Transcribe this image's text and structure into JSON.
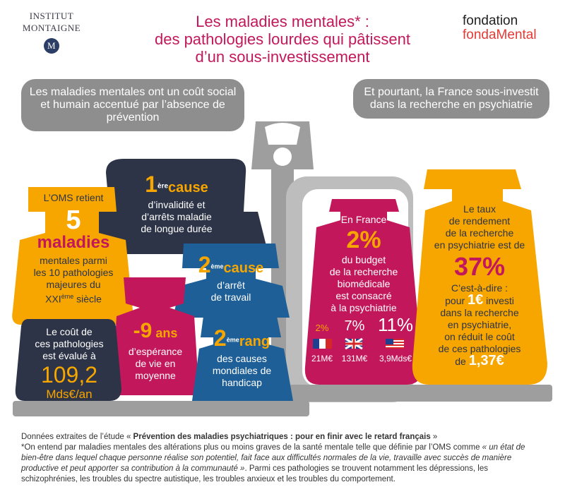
{
  "header": {
    "logo_left_line1": "INSTITUT",
    "logo_left_line2": "MONTAIGNE",
    "logo_left_mark": "M",
    "title_line1": "Les maladies mentales* :",
    "title_line2": "des pathologies lourdes qui pâtissent",
    "title_line3": "d’un sous-investissement",
    "logo_right_line1": "fondation",
    "logo_right_line2": "fondaMental"
  },
  "left_heading": "Les maladies mentales ont un coût social et humain accentué par l’absence de prévention",
  "right_heading": "Et pourtant, la France sous-investit dans la recherche en psychiatrie",
  "weights": {
    "oms": {
      "intro": "L’OMS retient",
      "number": "5",
      "unit": "maladies",
      "line1": "mentales parmi",
      "line2": "les 10 pathologies",
      "line3": "majeures du",
      "line4a": "XXI",
      "line4sup": "ème",
      "line4b": " siècle"
    },
    "first_cause": {
      "num": "1",
      "sup": "ère",
      "label": "cause",
      "line1": "d’invalidité et",
      "line2": "d’arrêts maladie",
      "line3": "de longue durée"
    },
    "second_cause": {
      "num": "2",
      "sup": "ème",
      "label": "cause",
      "line1": "d’arrêt",
      "line2": "de travail"
    },
    "cost": {
      "line1": "Le coût de",
      "line2": "ces pathologies",
      "line3": "est évalué à",
      "value": "109,2",
      "unit": "Mds€/an"
    },
    "life": {
      "value": "-9",
      "unit": " ans",
      "line1": "d’espérance",
      "line2": "de vie en",
      "line3": "moyenne"
    },
    "second_rank": {
      "num": "2",
      "sup": "ème",
      "label": "rang",
      "line1": "des causes",
      "line2": "mondiales de",
      "line3": "handicap"
    },
    "france": {
      "intro": "En France",
      "value": "2%",
      "line1": "du budget",
      "line2": "de la recherche",
      "line3": "biomédicale",
      "line4": "est consacré",
      "line5": "à la psychiatrie",
      "countries": [
        {
          "pct": "2%",
          "amount": "21M€",
          "flag": "france-flag"
        },
        {
          "pct": "7%",
          "amount": "131M€",
          "flag": "uk-flag"
        },
        {
          "pct": "11%",
          "amount": "3,9Mds€",
          "flag": "usa-flag"
        }
      ]
    },
    "return": {
      "line1": "Le taux",
      "line2": "de rendement",
      "line3": "de la recherche",
      "line4": "en psychiatrie est de",
      "value": "37%",
      "line5": "C’est-à-dire :",
      "line6a": "pour ",
      "line6big": "1€",
      "line6b": " investi",
      "line7": "dans la recherche",
      "line8": "en psychiatrie,",
      "line9": "on réduit le coût",
      "line10": "de ces pathologies",
      "line11a": "de ",
      "line11big": "1,37€"
    }
  },
  "footnote": {
    "source_prefix": "Données extraites de l’étude « ",
    "source_title": "Prévention des maladies psychiatriques : pour en finir avec le retard français",
    "source_suffix": " »",
    "def_prefix": "*On entend par maladies mentales des altérations plus ou moins graves de la santé mentale telle que définie par l’OMS comme ",
    "def_quote": "« un état de bien-être dans lequel chaque personne réalise son potentiel, fait face aux difficultés normales de la vie, travaille avec succès de manière productive et peut apporter sa contribution à la communauté »",
    "def_suffix": ". Parmi ces pathologies se trouvent notamment les dépressions, les schizophrénies, les troubles du spectre autistique, les troubles anxieux et les troubles du comportement."
  },
  "colors": {
    "navy": "#2d3447",
    "yellow": "#f7a600",
    "magenta": "#c2185b",
    "blue": "#1d5f96",
    "grey": "#8e8e8e",
    "light_grey": "#bdbdbd"
  }
}
